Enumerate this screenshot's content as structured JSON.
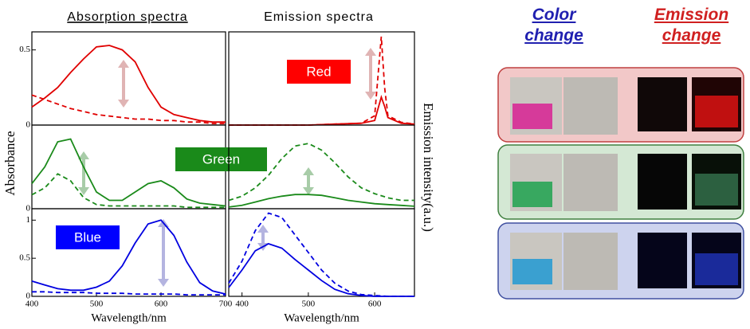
{
  "headers": {
    "absorption": "Absorption spectra",
    "emission": "Emission spectra"
  },
  "y_label": "Absorbance",
  "y2_label": "Emission intensity(a.u.)",
  "right_panel": {
    "color_change": "Color change",
    "emission_change": "Emission change"
  },
  "chart_data": [
    {
      "type": "line",
      "xlim": [
        400,
        700
      ],
      "ylim": [
        0,
        0.62
      ],
      "yticks": [
        0,
        0.5
      ],
      "x": [
        400,
        420,
        440,
        460,
        480,
        500,
        520,
        540,
        560,
        580,
        600,
        620,
        640,
        660,
        680,
        700
      ],
      "series": [
        {
          "color": "#e00000",
          "dash": false,
          "values": [
            0.12,
            0.18,
            0.25,
            0.35,
            0.44,
            0.52,
            0.53,
            0.5,
            0.42,
            0.25,
            0.12,
            0.07,
            0.05,
            0.03,
            0.02,
            0.02
          ]
        },
        {
          "color": "#e00000",
          "dash": true,
          "values": [
            0.2,
            0.17,
            0.14,
            0.11,
            0.09,
            0.07,
            0.06,
            0.05,
            0.04,
            0.04,
            0.03,
            0.03,
            0.02,
            0.02,
            0.01,
            0.01
          ]
        }
      ]
    },
    {
      "type": "line",
      "xlim": [
        380,
        660
      ],
      "ylim": [
        0,
        1
      ],
      "annotation": "Red",
      "annotation_color": "#ff0000",
      "x": [
        380,
        420,
        460,
        500,
        540,
        580,
        600,
        610,
        615,
        620,
        640,
        660
      ],
      "series": [
        {
          "color": "#e00000",
          "dash": false,
          "values": [
            0,
            0,
            0,
            0,
            0.01,
            0.02,
            0.05,
            0.3,
            0.2,
            0.08,
            0.02,
            0.01
          ]
        },
        {
          "color": "#e00000",
          "dash": true,
          "values": [
            0,
            0,
            0,
            0,
            0.01,
            0.02,
            0.1,
            0.95,
            0.4,
            0.1,
            0.03,
            0.01
          ]
        }
      ]
    },
    {
      "type": "line",
      "xlim": [
        400,
        700
      ],
      "ylim": [
        0,
        0.6
      ],
      "yticks": [
        0
      ],
      "annotation": "Green",
      "annotation_color": "#1a8a1a",
      "x": [
        400,
        420,
        440,
        460,
        480,
        500,
        520,
        540,
        560,
        580,
        600,
        620,
        640,
        660,
        680,
        700
      ],
      "series": [
        {
          "color": "#1a8a1a",
          "dash": false,
          "values": [
            0.18,
            0.3,
            0.48,
            0.5,
            0.3,
            0.12,
            0.06,
            0.06,
            0.12,
            0.18,
            0.2,
            0.15,
            0.07,
            0.04,
            0.03,
            0.02
          ]
        },
        {
          "color": "#1a8a1a",
          "dash": true,
          "values": [
            0.1,
            0.15,
            0.25,
            0.2,
            0.08,
            0.03,
            0.02,
            0.02,
            0.02,
            0.02,
            0.02,
            0.02,
            0.01,
            0.01,
            0.01,
            0.01
          ]
        }
      ]
    },
    {
      "type": "line",
      "xlim": [
        380,
        660
      ],
      "ylim": [
        0,
        1
      ],
      "x": [
        380,
        400,
        420,
        440,
        460,
        480,
        500,
        520,
        540,
        560,
        580,
        600,
        620,
        640,
        660
      ],
      "series": [
        {
          "color": "#1a8a1a",
          "dash": false,
          "values": [
            0.02,
            0.04,
            0.08,
            0.12,
            0.15,
            0.17,
            0.17,
            0.16,
            0.13,
            0.1,
            0.08,
            0.06,
            0.05,
            0.04,
            0.03
          ]
        },
        {
          "color": "#1a8a1a",
          "dash": true,
          "values": [
            0.1,
            0.15,
            0.25,
            0.4,
            0.6,
            0.75,
            0.78,
            0.7,
            0.55,
            0.38,
            0.25,
            0.18,
            0.13,
            0.1,
            0.1
          ]
        }
      ]
    },
    {
      "type": "line",
      "xlim": [
        400,
        700
      ],
      "ylim": [
        0,
        1.15
      ],
      "yticks": [
        0,
        0.5,
        1.0
      ],
      "xticks": [
        400,
        500,
        600,
        700
      ],
      "xlabel": "Wavelength/nm",
      "annotation": "Blue",
      "annotation_color": "#0000ff",
      "x": [
        400,
        420,
        440,
        460,
        480,
        500,
        520,
        540,
        560,
        580,
        600,
        620,
        640,
        660,
        680,
        700
      ],
      "series": [
        {
          "color": "#0000e0",
          "dash": false,
          "values": [
            0.2,
            0.15,
            0.1,
            0.08,
            0.08,
            0.12,
            0.2,
            0.4,
            0.7,
            0.95,
            1.0,
            0.8,
            0.45,
            0.18,
            0.07,
            0.03
          ]
        },
        {
          "color": "#0000e0",
          "dash": true,
          "values": [
            0.06,
            0.06,
            0.05,
            0.05,
            0.05,
            0.04,
            0.04,
            0.04,
            0.03,
            0.03,
            0.03,
            0.03,
            0.02,
            0.02,
            0.02,
            0.02
          ]
        }
      ]
    },
    {
      "type": "line",
      "xlim": [
        380,
        660
      ],
      "ylim": [
        0,
        1
      ],
      "xticks": [
        400,
        500,
        600
      ],
      "xlabel": "Wavelength/nm",
      "x": [
        380,
        400,
        420,
        440,
        460,
        480,
        500,
        520,
        540,
        560,
        580,
        600,
        620,
        640,
        660
      ],
      "series": [
        {
          "color": "#0000e0",
          "dash": false,
          "values": [
            0.1,
            0.3,
            0.52,
            0.6,
            0.55,
            0.42,
            0.3,
            0.18,
            0.08,
            0.03,
            0.01,
            0,
            0,
            0,
            0
          ]
        },
        {
          "color": "#0000e0",
          "dash": true,
          "values": [
            0.15,
            0.4,
            0.75,
            0.95,
            0.9,
            0.7,
            0.5,
            0.3,
            0.15,
            0.06,
            0.02,
            0.01,
            0,
            0,
            0
          ]
        }
      ]
    }
  ]
}
